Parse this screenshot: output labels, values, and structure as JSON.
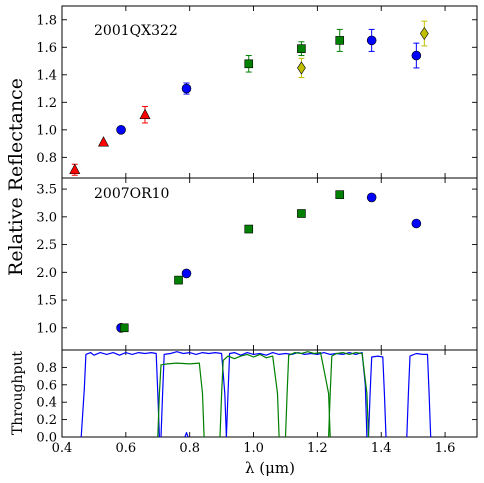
{
  "chart_data": [
    {
      "type": "scatter",
      "panel_label": "2001QX322",
      "ylabel": "Relative Reflectance",
      "xlim": [
        0.4,
        1.7
      ],
      "ylim": [
        0.65,
        1.9
      ],
      "yticks": [
        0.8,
        1.0,
        1.2,
        1.4,
        1.6,
        1.8
      ],
      "series": [
        {
          "marker": "triangle",
          "color": "#ff0000",
          "points": [
            {
              "x": 0.44,
              "y": 0.71,
              "err": 0.04
            },
            {
              "x": 0.53,
              "y": 0.91,
              "err": 0.0
            },
            {
              "x": 0.66,
              "y": 1.11,
              "err": 0.06
            }
          ]
        },
        {
          "marker": "circle",
          "color": "#0000ff",
          "points": [
            {
              "x": 0.585,
              "y": 1.0,
              "err": 0.0
            },
            {
              "x": 0.79,
              "y": 1.3,
              "err": 0.04
            },
            {
              "x": 1.37,
              "y": 1.65,
              "err": 0.08
            },
            {
              "x": 1.51,
              "y": 1.54,
              "err": 0.09
            }
          ]
        },
        {
          "marker": "square",
          "color": "#008000",
          "points": [
            {
              "x": 0.985,
              "y": 1.48,
              "err": 0.06
            },
            {
              "x": 1.15,
              "y": 1.59,
              "err": 0.05
            },
            {
              "x": 1.27,
              "y": 1.65,
              "err": 0.08
            }
          ]
        },
        {
          "marker": "diamond",
          "color": "#bfbf00",
          "points": [
            {
              "x": 1.15,
              "y": 1.45,
              "err": 0.07
            },
            {
              "x": 1.535,
              "y": 1.7,
              "err": 0.09
            }
          ]
        }
      ]
    },
    {
      "type": "scatter",
      "panel_label": "2007OR10",
      "xlim": [
        0.4,
        1.7
      ],
      "ylim": [
        0.6,
        3.7
      ],
      "yticks": [
        1.0,
        1.5,
        2.0,
        2.5,
        3.0,
        3.5
      ],
      "series": [
        {
          "marker": "circle",
          "color": "#0000ff",
          "points": [
            {
              "x": 0.585,
              "y": 1.0
            },
            {
              "x": 0.79,
              "y": 1.98
            },
            {
              "x": 1.37,
              "y": 3.35
            },
            {
              "x": 1.51,
              "y": 2.88
            }
          ]
        },
        {
          "marker": "square",
          "color": "#008000",
          "points": [
            {
              "x": 0.595,
              "y": 1.0
            },
            {
              "x": 0.765,
              "y": 1.86
            },
            {
              "x": 0.985,
              "y": 2.78
            },
            {
              "x": 1.15,
              "y": 3.06
            },
            {
              "x": 1.27,
              "y": 3.4
            }
          ]
        }
      ]
    },
    {
      "type": "line",
      "ylabel": "Throughput",
      "xlabel": "λ (μm)",
      "xlim": [
        0.4,
        1.7
      ],
      "ylim": [
        0.0,
        1.0
      ],
      "yticks": [
        0.0,
        0.2,
        0.4,
        0.6,
        0.8
      ],
      "xticks": [
        0.4,
        0.6,
        0.8,
        1.0,
        1.2,
        1.4,
        1.6
      ],
      "series": [
        {
          "color": "#0000ff",
          "points": [
            [
              0.46,
              0.0
            ],
            [
              0.47,
              0.55
            ],
            [
              0.475,
              0.95
            ],
            [
              0.49,
              0.97
            ],
            [
              0.5,
              0.94
            ],
            [
              0.52,
              0.97
            ],
            [
              0.54,
              0.95
            ],
            [
              0.56,
              0.97
            ],
            [
              0.58,
              0.94
            ],
            [
              0.6,
              0.97
            ],
            [
              0.62,
              0.95
            ],
            [
              0.64,
              0.97
            ],
            [
              0.66,
              0.96
            ],
            [
              0.68,
              0.97
            ],
            [
              0.695,
              0.96
            ],
            [
              0.7,
              0.5
            ],
            [
              0.705,
              0.0
            ]
          ]
        },
        {
          "color": "#0000ff",
          "points": [
            [
              0.71,
              0.0
            ],
            [
              0.715,
              0.5
            ],
            [
              0.72,
              0.95
            ],
            [
              0.74,
              0.96
            ],
            [
              0.76,
              0.98
            ],
            [
              0.78,
              0.96
            ],
            [
              0.8,
              0.97
            ],
            [
              0.82,
              0.95
            ],
            [
              0.84,
              0.97
            ],
            [
              0.86,
              0.96
            ],
            [
              0.88,
              0.97
            ],
            [
              0.9,
              0.96
            ],
            [
              0.91,
              0.5
            ],
            [
              0.915,
              0.0
            ]
          ]
        },
        {
          "color": "#0000ff",
          "points": [
            [
              0.915,
              0.0
            ],
            [
              0.92,
              0.5
            ],
            [
              0.925,
              0.96
            ],
            [
              0.94,
              0.97
            ],
            [
              0.96,
              0.94
            ],
            [
              0.98,
              0.97
            ],
            [
              1.0,
              0.95
            ],
            [
              1.02,
              0.96
            ],
            [
              1.04,
              0.94
            ],
            [
              1.06,
              0.97
            ],
            [
              1.08,
              0.95
            ],
            [
              1.1,
              0.96
            ],
            [
              1.12,
              0.95
            ],
            [
              1.14,
              0.97
            ],
            [
              1.16,
              0.95
            ],
            [
              1.18,
              0.96
            ],
            [
              1.2,
              0.95
            ],
            [
              1.22,
              0.97
            ],
            [
              1.24,
              0.95
            ],
            [
              1.26,
              0.96
            ],
            [
              1.28,
              0.95
            ],
            [
              1.3,
              0.97
            ],
            [
              1.32,
              0.95
            ],
            [
              1.34,
              0.97
            ],
            [
              1.35,
              0.6
            ],
            [
              1.355,
              0.0
            ]
          ]
        },
        {
          "color": "#0000ff",
          "points": [
            [
              1.36,
              0.0
            ],
            [
              1.365,
              0.5
            ],
            [
              1.37,
              0.92
            ],
            [
              1.39,
              0.93
            ],
            [
              1.405,
              0.92
            ],
            [
              1.41,
              0.5
            ],
            [
              1.415,
              0.0
            ]
          ]
        },
        {
          "color": "#0000ff",
          "points": [
            [
              1.48,
              0.0
            ],
            [
              1.485,
              0.5
            ],
            [
              1.49,
              0.93
            ],
            [
              1.51,
              0.96
            ],
            [
              1.53,
              0.95
            ],
            [
              1.545,
              0.95
            ],
            [
              1.55,
              0.5
            ],
            [
              1.555,
              0.0
            ]
          ]
        },
        {
          "color": "#0000ff",
          "points": [
            [
              0.785,
              0.0
            ],
            [
              0.79,
              0.05
            ],
            [
              0.795,
              0.0
            ]
          ]
        },
        {
          "color": "#008000",
          "points": [
            [
              0.7,
              0.0
            ],
            [
              0.705,
              0.5
            ],
            [
              0.71,
              0.83
            ],
            [
              0.73,
              0.84
            ],
            [
              0.76,
              0.85
            ],
            [
              0.8,
              0.84
            ],
            [
              0.83,
              0.85
            ],
            [
              0.84,
              0.5
            ],
            [
              0.845,
              0.0
            ]
          ]
        },
        {
          "color": "#008000",
          "points": [
            [
              0.895,
              0.0
            ],
            [
              0.9,
              0.5
            ],
            [
              0.905,
              0.88
            ],
            [
              0.92,
              0.93
            ],
            [
              0.94,
              0.9
            ],
            [
              0.96,
              0.93
            ],
            [
              0.98,
              0.95
            ],
            [
              1.0,
              0.92
            ],
            [
              1.02,
              0.95
            ],
            [
              1.04,
              0.91
            ],
            [
              1.06,
              0.93
            ],
            [
              1.075,
              0.5
            ],
            [
              1.08,
              0.0
            ]
          ]
        },
        {
          "color": "#008000",
          "points": [
            [
              1.1,
              0.0
            ],
            [
              1.105,
              0.5
            ],
            [
              1.11,
              0.94
            ],
            [
              1.13,
              0.97
            ],
            [
              1.15,
              0.96
            ],
            [
              1.17,
              0.98
            ],
            [
              1.19,
              0.96
            ],
            [
              1.21,
              0.97
            ],
            [
              1.235,
              0.5
            ],
            [
              1.24,
              0.0
            ]
          ]
        },
        {
          "color": "#008000",
          "points": [
            [
              1.235,
              0.0
            ],
            [
              1.24,
              0.5
            ],
            [
              1.245,
              0.93
            ],
            [
              1.26,
              0.96
            ],
            [
              1.28,
              0.97
            ],
            [
              1.3,
              0.95
            ],
            [
              1.32,
              0.97
            ],
            [
              1.34,
              0.96
            ],
            [
              1.355,
              0.5
            ],
            [
              1.36,
              0.0
            ]
          ]
        }
      ]
    }
  ]
}
